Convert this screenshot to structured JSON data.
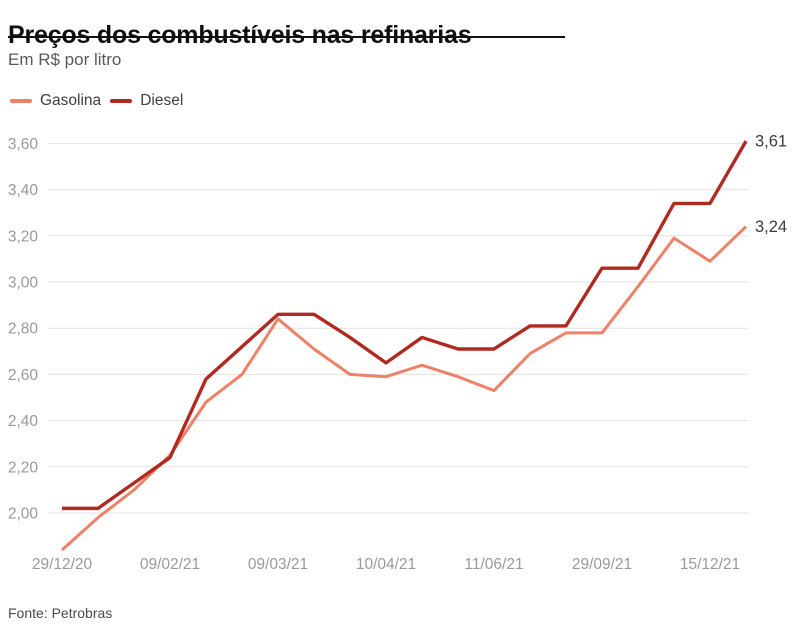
{
  "header": {
    "title": "Preços dos combustíveis nas refinarias",
    "subtitle": "Em R$ por litro"
  },
  "footer": {
    "source": "Fonte: Petrobras"
  },
  "chart_data": {
    "type": "line",
    "title": "Preços dos combustíveis nas refinarias",
    "subtitle": "Em R$ por litro",
    "n_points": 20,
    "grid": "horizontal",
    "legend_position": "top-left",
    "gridline_color": "#e2e2e2",
    "ylim": [
      1.78,
      3.7
    ],
    "yticks": [
      {
        "value": 2.0,
        "label": "2,00"
      },
      {
        "value": 2.2,
        "label": "2,20"
      },
      {
        "value": 2.4,
        "label": "2,40"
      },
      {
        "value": 2.6,
        "label": "2,60"
      },
      {
        "value": 2.8,
        "label": "2,80"
      },
      {
        "value": 3.0,
        "label": "3,00"
      },
      {
        "value": 3.2,
        "label": "3,20"
      },
      {
        "value": 3.4,
        "label": "3,40"
      },
      {
        "value": 3.6,
        "label": "3,60"
      }
    ],
    "xticks": [
      {
        "index": 0,
        "label": "29/12/20"
      },
      {
        "index": 3,
        "label": "09/02/21"
      },
      {
        "index": 6,
        "label": "09/03/21"
      },
      {
        "index": 9,
        "label": "10/04/21"
      },
      {
        "index": 12,
        "label": "11/06/21"
      },
      {
        "index": 15,
        "label": "29/09/21"
      },
      {
        "index": 18,
        "label": "15/12/21"
      }
    ],
    "series": [
      {
        "name": "Gasolina",
        "color": "#ED8266",
        "end_label": "3,24",
        "values": [
          1.84,
          1.98,
          2.1,
          2.25,
          2.48,
          2.6,
          2.84,
          2.71,
          2.6,
          2.59,
          2.64,
          2.59,
          2.53,
          2.69,
          2.78,
          2.78,
          2.98,
          3.19,
          3.09,
          3.24
        ]
      },
      {
        "name": "Diesel",
        "color": "#B02A21",
        "end_label": "3,61",
        "values": [
          2.02,
          2.02,
          2.13,
          2.24,
          2.58,
          2.72,
          2.86,
          2.86,
          2.76,
          2.65,
          2.76,
          2.71,
          2.71,
          2.81,
          2.81,
          3.06,
          3.06,
          3.34,
          3.34,
          3.61
        ]
      }
    ]
  }
}
